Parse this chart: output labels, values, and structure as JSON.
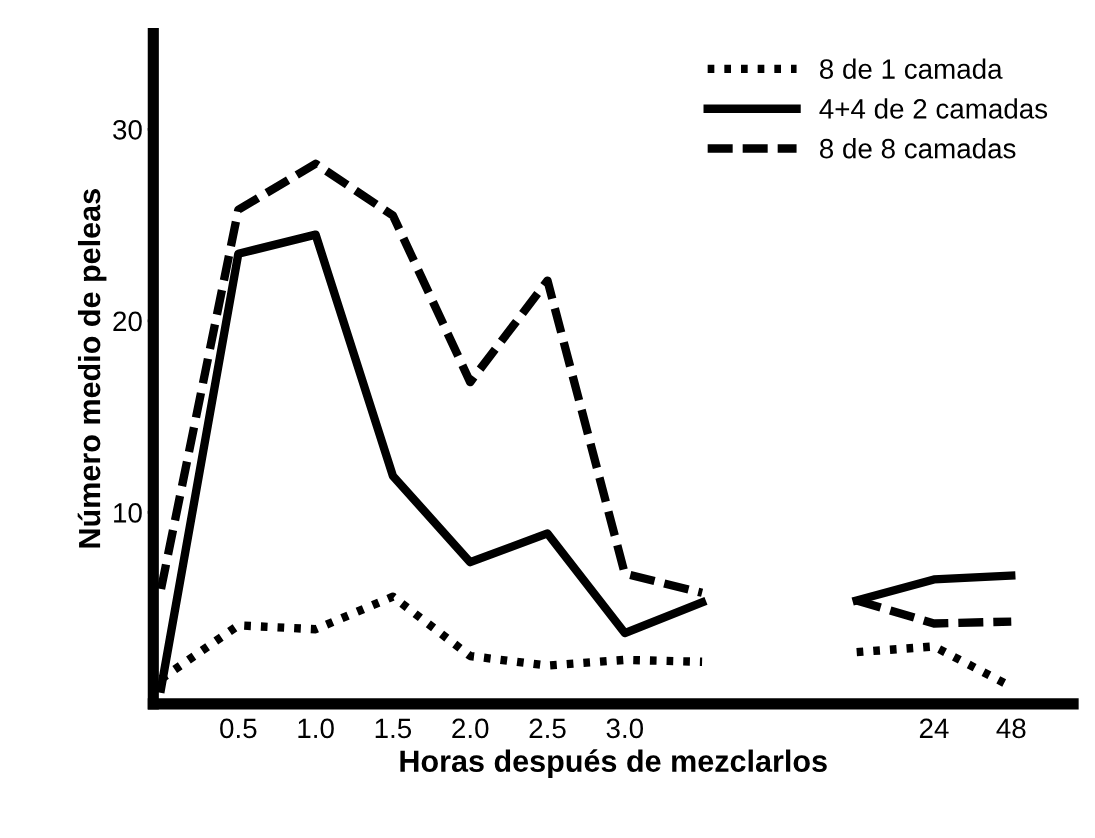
{
  "chart_data": {
    "type": "line",
    "xlabel": "Horas después de mezclarlos",
    "ylabel": "Número medio de peleas",
    "categories": [
      null,
      "0.5",
      "1.0",
      "1.5",
      "2.0",
      "2.5",
      "3.0",
      null,
      null,
      null,
      "24",
      "48"
    ],
    "ylim": [
      0,
      35
    ],
    "yticks": [
      10,
      20,
      30
    ],
    "grid": false,
    "legend": "top right",
    "marker": "none",
    "series": [
      {
        "name": "8 de 1 camada",
        "color": "#000000",
        "line_style": "dotted",
        "values": [
          1.3,
          4.1,
          3.9,
          5.6,
          2.5,
          2.0,
          2.3,
          2.2,
          null,
          2.7,
          3.0,
          0.9
        ]
      },
      {
        "name": "4+4 de 2 camadas",
        "color": "#000000",
        "line_style": "solid",
        "values": [
          0.8,
          23.5,
          24.5,
          11.9,
          7.4,
          8.9,
          3.7,
          5.3,
          null,
          5.4,
          6.5,
          6.7
        ]
      },
      {
        "name": "8 de 8 camadas",
        "color": "#000000",
        "line_style": "dashed",
        "values": [
          6.0,
          25.8,
          28.2,
          25.5,
          16.8,
          22.1,
          6.8,
          5.8,
          null,
          5.4,
          4.2,
          4.3
        ]
      }
    ]
  }
}
